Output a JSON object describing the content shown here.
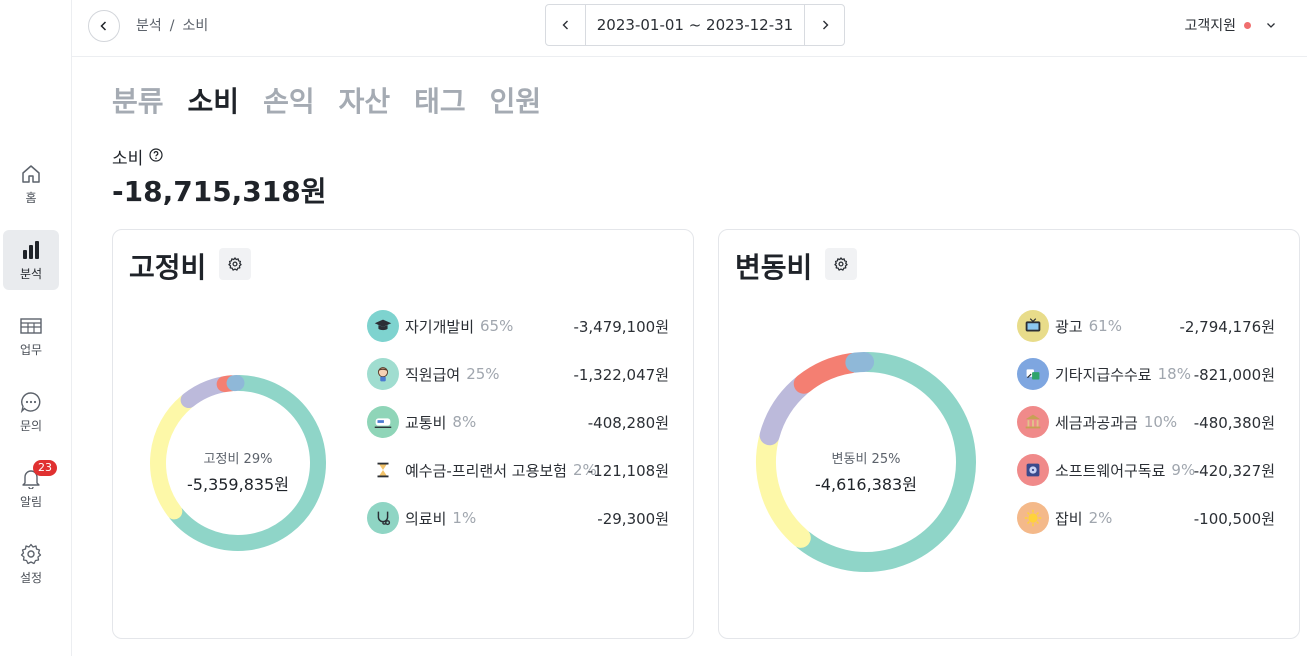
{
  "sidebar": {
    "items": [
      {
        "label": "홈",
        "icon": "home-icon"
      },
      {
        "label": "분석",
        "icon": "bar-chart-icon",
        "active": true
      },
      {
        "label": "업무",
        "icon": "table-icon"
      },
      {
        "label": "문의",
        "icon": "chat-icon"
      },
      {
        "label": "알림",
        "icon": "bell-icon",
        "badge": "23"
      },
      {
        "label": "설정",
        "icon": "gear-icon"
      }
    ]
  },
  "header": {
    "breadcrumb": [
      "분석",
      "소비"
    ],
    "breadcrumb_sep": "/",
    "date_range": "2023-01-01 ~ 2023-12-31",
    "support_label": "고객지원"
  },
  "tabs": [
    {
      "label": "분류",
      "active": false
    },
    {
      "label": "소비",
      "active": true
    },
    {
      "label": "손익",
      "active": false
    },
    {
      "label": "자산",
      "active": false
    },
    {
      "label": "태그",
      "active": false
    },
    {
      "label": "인원",
      "active": false
    }
  ],
  "summary": {
    "label": "소비",
    "value": "-18,715,318원"
  },
  "fixed": {
    "title": "고정비",
    "center_label": "고정비 29%",
    "center_value": "-5,359,835원",
    "items": [
      {
        "name": "자기개발비",
        "pct": "65%",
        "amount": "-3,479,100원",
        "icon": "graduation-cap-icon",
        "bg": "#7ed3cf"
      },
      {
        "name": "직원급여",
        "pct": "25%",
        "amount": "-1,322,047원",
        "icon": "employee-icon",
        "bg": "#a0ddd0"
      },
      {
        "name": "교통비",
        "pct": "8%",
        "amount": "-408,280원",
        "icon": "train-icon",
        "bg": "#8fd5b8"
      },
      {
        "name": "예수금-프리랜서 고용보험",
        "pct": "2%",
        "amount": "-121,108원",
        "icon": "hourglass-icon",
        "bg": "#ffffff"
      },
      {
        "name": "의료비",
        "pct": "1%",
        "amount": "-29,300원",
        "icon": "stethoscope-icon",
        "bg": "#8fd5c4"
      }
    ]
  },
  "variable": {
    "title": "변동비",
    "center_label": "변동비 25%",
    "center_value": "-4,616,383원",
    "items": [
      {
        "name": "광고",
        "pct": "61%",
        "amount": "-2,794,176원",
        "icon": "tv-icon",
        "bg": "#e8dc8a"
      },
      {
        "name": "기타지급수수료",
        "pct": "18%",
        "amount": "-821,000원",
        "icon": "fee-icon",
        "bg": "#7ea6e0"
      },
      {
        "name": "세금과공과금",
        "pct": "10%",
        "amount": "-480,380원",
        "icon": "bank-icon",
        "bg": "#f08a8a"
      },
      {
        "name": "소프트웨어구독료",
        "pct": "9%",
        "amount": "-420,327원",
        "icon": "disk-icon",
        "bg": "#f08a8a"
      },
      {
        "name": "잡비",
        "pct": "2%",
        "amount": "-100,500원",
        "icon": "sparkle-icon",
        "bg": "#f4b98a"
      }
    ]
  },
  "chart_data": [
    {
      "type": "pie",
      "variant": "donut",
      "categories": [
        "자기개발비",
        "직원급여",
        "교통비",
        "예수금-프리랜서 고용보험",
        "의료비"
      ],
      "values": [
        65,
        25,
        8,
        2,
        1
      ],
      "colors": [
        "#8fd5c8",
        "#fdf8a8",
        "#bcbadb",
        "#f47f72",
        "#8fb8d8"
      ]
    },
    {
      "type": "pie",
      "variant": "donut",
      "categories": [
        "광고",
        "기타지급수수료",
        "세금과공과금",
        "소프트웨어구독료",
        "잡비"
      ],
      "values": [
        61,
        18,
        10,
        9,
        2
      ],
      "colors": [
        "#8fd5c8",
        "#fdf8a8",
        "#bcbadb",
        "#f47f72",
        "#8fb8d8"
      ]
    }
  ]
}
